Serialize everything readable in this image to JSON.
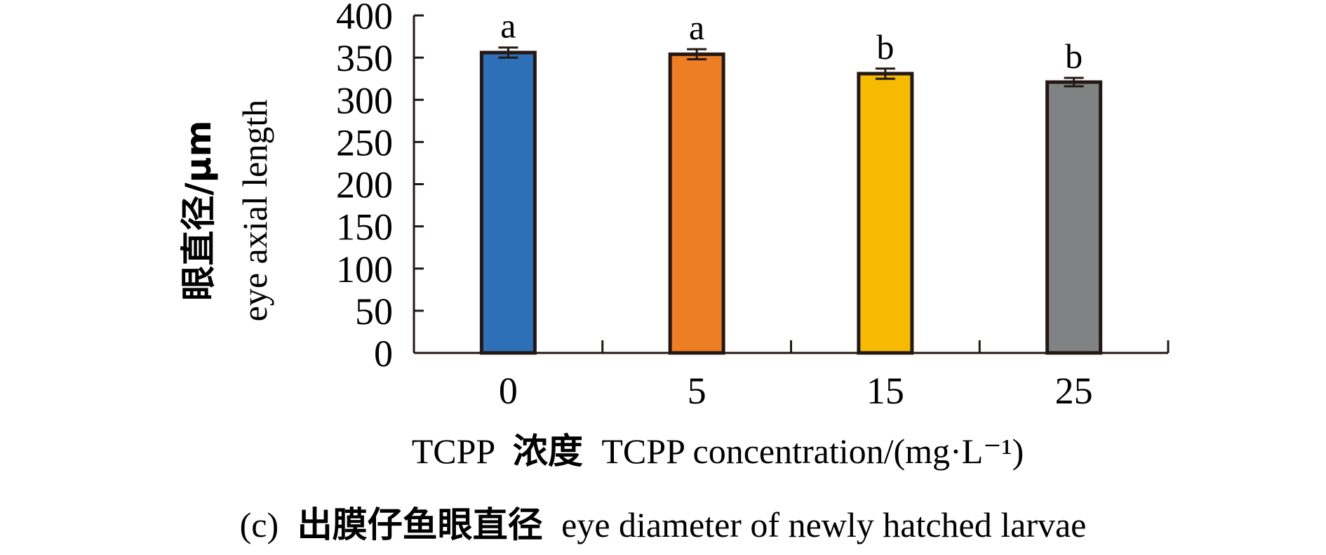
{
  "chart_data": {
    "type": "bar",
    "caption": "(c) 出膜仔鱼眼直径 eye diameter of newly hatched larvae",
    "xlabel": "TCPP 浓度 TCPP concentration/(mg·L⁻¹)",
    "xlabel_parts": {
      "cn": "浓度",
      "en": "TCPP concentration/(mg·L⁻¹)",
      "prefix": "TCPP"
    },
    "ylabel": {
      "cn": "眼直径/μm",
      "en": "eye axial length"
    },
    "ylim": [
      0,
      400
    ],
    "yticks": [
      0,
      50,
      100,
      150,
      200,
      250,
      300,
      350,
      400
    ],
    "categories": [
      "0",
      "5",
      "15",
      "25"
    ],
    "values": [
      356,
      354,
      331,
      321
    ],
    "errors": [
      6,
      6,
      6,
      5
    ],
    "significance": [
      "a",
      "a",
      "b",
      "b"
    ],
    "colors": [
      "#2e70b8",
      "#ee7e24",
      "#f6ba00",
      "#808384"
    ],
    "bar_outline_color": "#231815",
    "grid": false,
    "legend": "none"
  },
  "caption_parts": {
    "label": "(c)",
    "cn": "出膜仔鱼眼直径",
    "en": "eye diameter of newly hatched larvae"
  }
}
